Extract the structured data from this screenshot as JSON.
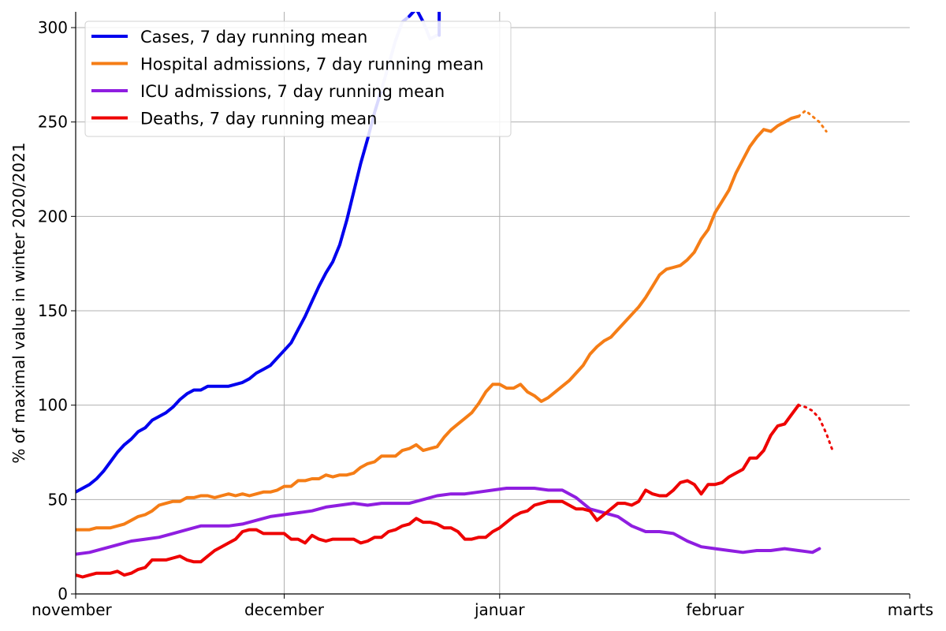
{
  "chart_data": {
    "type": "line",
    "title": "",
    "ylabel": "% of maximal value in winter 2020/2021",
    "xlabel": "",
    "xlim": [
      0,
      120
    ],
    "ylim": [
      0,
      300
    ],
    "y_ticks": [
      0,
      50,
      100,
      150,
      200,
      250,
      300
    ],
    "x_ticks": [
      {
        "pos": 0,
        "label": "november"
      },
      {
        "pos": 30,
        "label": "december"
      },
      {
        "pos": 61,
        "label": "januar"
      },
      {
        "pos": 92,
        "label": "februar"
      },
      {
        "pos": 120,
        "label": "marts"
      }
    ],
    "grid": true,
    "legend_position": "top-left",
    "series": [
      {
        "name": "Cases, 7 day running mean",
        "color": "#0000ee",
        "x": [
          0,
          1,
          2,
          3,
          4,
          5,
          6,
          7,
          8,
          9,
          10,
          11,
          12,
          13,
          14,
          15,
          16,
          17,
          18,
          19,
          20,
          21,
          22,
          23,
          24,
          25,
          26,
          27,
          28,
          29,
          30,
          31,
          32,
          33,
          34,
          35,
          36,
          37,
          38,
          39,
          40,
          41,
          42,
          43,
          44,
          45,
          46,
          47,
          48,
          49,
          50,
          51,
          52
        ],
        "y": [
          54,
          56,
          58,
          61,
          65,
          70,
          75,
          79,
          82,
          86,
          88,
          92,
          94,
          96,
          99,
          103,
          106,
          108,
          108,
          110,
          110,
          110,
          110,
          111,
          112,
          114,
          117,
          119,
          121,
          125,
          129,
          133,
          140,
          147,
          155,
          163,
          170,
          176,
          185,
          198,
          213,
          228,
          241,
          255,
          267,
          280,
          293,
          303,
          306,
          310,
          303,
          294,
          296
        ],
        "segments": [
          {
            "from": 0,
            "to": 44,
            "color": "#0000ee"
          },
          {
            "from": 44,
            "to": 49,
            "color": "#c8c8ff"
          },
          {
            "from": 48,
            "to": 50,
            "color": "#0000ee"
          },
          {
            "from": 50,
            "to": 52,
            "color": "#c8c8ff"
          }
        ],
        "vertical_exit": {
          "x": 52.3,
          "y_from": 296,
          "y_to": 310,
          "color": "#0000ee"
        }
      },
      {
        "name": "Hospital admissions, 7 day running mean",
        "color": "#f57d16",
        "x": [
          0,
          1,
          2,
          3,
          4,
          5,
          6,
          7,
          8,
          9,
          10,
          11,
          12,
          13,
          14,
          15,
          16,
          17,
          18,
          19,
          20,
          21,
          22,
          23,
          24,
          25,
          26,
          27,
          28,
          29,
          30,
          31,
          32,
          33,
          34,
          35,
          36,
          37,
          38,
          39,
          40,
          41,
          42,
          43,
          44,
          45,
          46,
          47,
          48,
          49,
          50,
          51,
          52,
          53,
          54,
          55,
          56,
          57,
          58,
          59,
          60,
          61,
          62,
          63,
          64,
          65,
          66,
          67,
          68,
          69,
          70,
          71,
          72,
          73,
          74,
          75,
          76,
          77,
          78,
          79,
          80,
          81,
          82,
          83,
          84,
          85,
          86,
          87,
          88,
          89,
          90,
          91,
          92,
          93,
          94,
          95,
          96,
          97,
          98,
          99,
          100,
          101,
          102,
          103,
          104
        ],
        "y": [
          34,
          34,
          34,
          35,
          35,
          35,
          36,
          37,
          39,
          41,
          42,
          44,
          47,
          48,
          49,
          49,
          51,
          51,
          52,
          52,
          51,
          52,
          53,
          52,
          53,
          52,
          53,
          54,
          54,
          55,
          57,
          57,
          60,
          60,
          61,
          61,
          63,
          62,
          63,
          63,
          64,
          67,
          69,
          70,
          73,
          73,
          73,
          76,
          77,
          79,
          76,
          77,
          78,
          83,
          87,
          90,
          93,
          96,
          101,
          107,
          111,
          111,
          109,
          109,
          111,
          107,
          105,
          102,
          104,
          107,
          110,
          113,
          117,
          121,
          127,
          131,
          134,
          136,
          140,
          144,
          148,
          152,
          157,
          163,
          169,
          172,
          173,
          174,
          177,
          181,
          188,
          193,
          202,
          208,
          214,
          223,
          230,
          237,
          242,
          246,
          245,
          248,
          250,
          252,
          253
        ],
        "forecast": {
          "x": [
            104,
            105,
            106,
            107,
            108
          ],
          "y": [
            253,
            256,
            253,
            250,
            245
          ]
        }
      },
      {
        "name": "ICU admissions, 7 day running mean",
        "color": "#8f1ee0",
        "x": [
          0,
          2,
          4,
          6,
          8,
          10,
          12,
          14,
          16,
          18,
          20,
          22,
          24,
          26,
          28,
          30,
          32,
          34,
          36,
          38,
          40,
          42,
          44,
          46,
          48,
          50,
          52,
          54,
          56,
          58,
          60,
          62,
          64,
          66,
          68,
          70,
          72,
          74,
          76,
          78,
          80,
          82,
          84,
          86,
          88,
          90,
          92,
          94,
          96,
          98,
          100,
          102,
          104,
          106,
          107
        ],
        "y": [
          21,
          22,
          24,
          26,
          28,
          29,
          30,
          32,
          34,
          36,
          36,
          36,
          37,
          39,
          41,
          42,
          43,
          44,
          46,
          47,
          48,
          47,
          48,
          48,
          48,
          50,
          52,
          53,
          53,
          54,
          55,
          56,
          56,
          56,
          55,
          55,
          51,
          45,
          43,
          41,
          36,
          33,
          33,
          32,
          28,
          25,
          24,
          23,
          22,
          23,
          23,
          24,
          23,
          22,
          24
        ]
      },
      {
        "name": "Deaths, 7 day running mean",
        "color": "#ee0000",
        "x": [
          0,
          1,
          2,
          3,
          4,
          5,
          6,
          7,
          8,
          9,
          10,
          11,
          12,
          13,
          14,
          15,
          16,
          17,
          18,
          19,
          20,
          21,
          22,
          23,
          24,
          25,
          26,
          27,
          28,
          29,
          30,
          31,
          32,
          33,
          34,
          35,
          36,
          37,
          38,
          39,
          40,
          41,
          42,
          43,
          44,
          45,
          46,
          47,
          48,
          49,
          50,
          51,
          52,
          53,
          54,
          55,
          56,
          57,
          58,
          59,
          60,
          61,
          62,
          63,
          64,
          65,
          66,
          67,
          68,
          69,
          70,
          71,
          72,
          73,
          74,
          75,
          76,
          77,
          78,
          79,
          80,
          81,
          82,
          83,
          84,
          85,
          86,
          87,
          88,
          89,
          90,
          91,
          92,
          93,
          94,
          95,
          96,
          97,
          98,
          99,
          100,
          101,
          102,
          103,
          104
        ],
        "y": [
          10,
          9,
          10,
          11,
          11,
          11,
          12,
          10,
          11,
          13,
          14,
          18,
          18,
          18,
          19,
          20,
          18,
          17,
          17,
          20,
          23,
          25,
          27,
          29,
          33,
          34,
          34,
          32,
          32,
          32,
          32,
          29,
          29,
          27,
          31,
          29,
          28,
          29,
          29,
          29,
          29,
          27,
          28,
          30,
          30,
          33,
          34,
          36,
          37,
          40,
          38,
          38,
          37,
          35,
          35,
          33,
          29,
          29,
          30,
          30,
          33,
          35,
          38,
          41,
          43,
          44,
          47,
          48,
          49,
          49,
          49,
          47,
          45,
          45,
          44,
          39,
          42,
          45,
          48,
          48,
          47,
          49,
          55,
          53,
          52,
          52,
          55,
          59,
          60,
          58,
          53,
          58,
          58,
          59,
          62,
          64,
          66,
          72,
          72,
          76,
          84,
          89,
          90,
          95,
          100
        ],
        "forecast": {
          "x": [
            104,
            105,
            106,
            107,
            108,
            109
          ],
          "y": [
            100,
            99,
            97,
            93,
            85,
            75
          ]
        }
      }
    ]
  }
}
